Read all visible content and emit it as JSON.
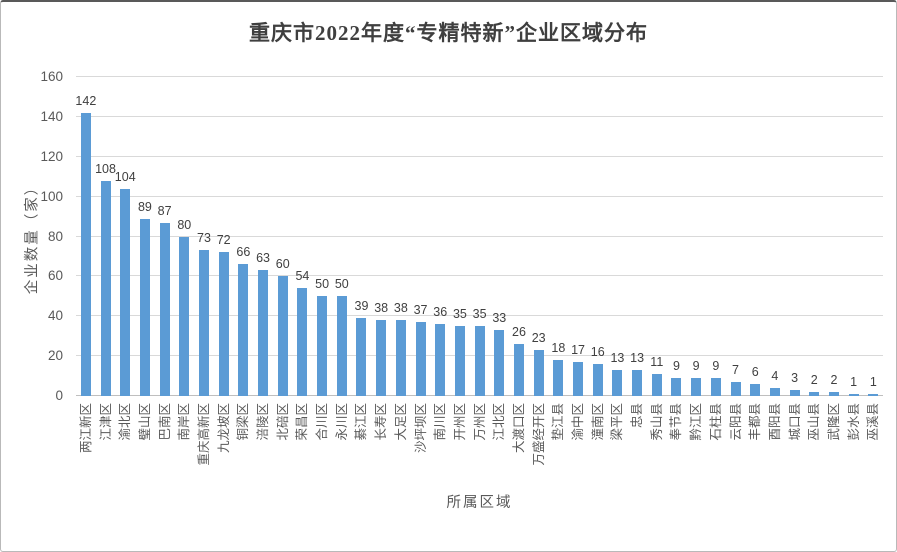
{
  "chart_data": {
    "type": "bar",
    "title": "重庆市2022年度“专精特新”企业区域分布",
    "xlabel": "所属区域",
    "ylabel": "企业数量（家）",
    "categories": [
      "两江新区",
      "江津区",
      "渝北区",
      "璧山区",
      "巴南区",
      "南岸区",
      "重庆高新区",
      "九龙坡区",
      "铜梁区",
      "涪陵区",
      "北碚区",
      "荣昌区",
      "合川区",
      "永川区",
      "綦江区",
      "长寿区",
      "大足区",
      "沙坪坝区",
      "南川区",
      "开州区",
      "万州区",
      "江北区",
      "大渡口区",
      "万盛经开区",
      "垫江县",
      "渝中区",
      "潼南区",
      "梁平区",
      "忠县",
      "秀山县",
      "奉节县",
      "黔江区",
      "石柱县",
      "云阳县",
      "丰都县",
      "酉阳县",
      "城口县",
      "巫山县",
      "武隆区",
      "彭水县",
      "巫溪县"
    ],
    "values": [
      142,
      108,
      104,
      89,
      87,
      80,
      73,
      72,
      66,
      63,
      60,
      54,
      50,
      50,
      39,
      38,
      38,
      37,
      36,
      35,
      35,
      33,
      26,
      23,
      18,
      17,
      16,
      13,
      13,
      11,
      9,
      9,
      9,
      7,
      6,
      4,
      3,
      2,
      2,
      1,
      1
    ],
    "ylim": [
      0,
      160
    ],
    "y_ticks": [
      0,
      20,
      40,
      60,
      80,
      100,
      120,
      140,
      160
    ],
    "grid": true,
    "legend_position": "none",
    "data_labels": true,
    "colors": {
      "bar": "#5b9bd5",
      "gridline": "#d9d9d9",
      "axis_text": "#595959",
      "data_label_text": "#404040",
      "title_text": "#3f3f3f"
    }
  }
}
